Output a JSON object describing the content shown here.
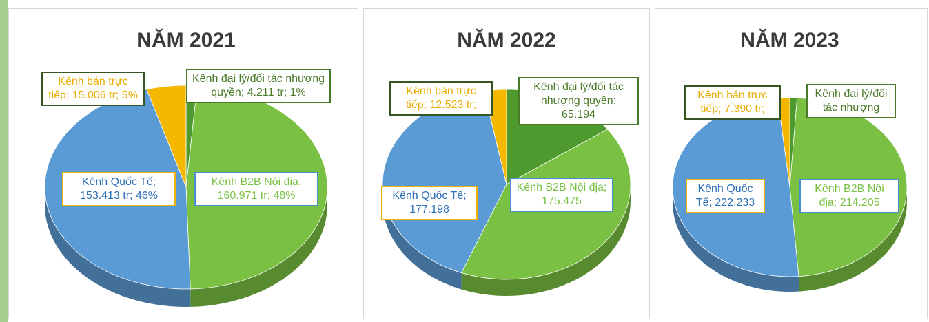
{
  "chart_data": [
    {
      "type": "pie",
      "title": "NĂM 2021",
      "values": [
        4211,
        160971,
        153413,
        15006
      ],
      "value_labels": [
        "Kênh đại lý/đối tác nhượng quyền; 4.211 tr; 1%",
        "Kênh B2B Nội địa; 160.971 tr; 48%",
        "Kênh Quốc Tế; 153.413 tr; 46%",
        "Kênh bán trực tiếp; 15.006 tr; 5%"
      ],
      "colors": [
        "#4e9a2e",
        "#7ac143",
        "#5b9bd5",
        "#f5b800"
      ]
    },
    {
      "type": "pie",
      "title": "NĂM 2022",
      "values": [
        65194,
        175475,
        177198,
        12523
      ],
      "value_labels": [
        "Kênh đại lý/đối tác nhượng quyền; 65.194",
        "Kênh B2B Nội địa; 175.475",
        "Kênh Quốc Tế; 177.198",
        "Kênh bán trực tiếp; 12.523 tr;"
      ],
      "colors": [
        "#4e9a2e",
        "#7ac143",
        "#5b9bd5",
        "#f5b800"
      ]
    },
    {
      "type": "pie",
      "title": "NĂM 2023",
      "values": [
        4500,
        214205,
        222233,
        7390
      ],
      "value_labels": [
        "Kênh đại lý/đối tác nhượng",
        "Kênh B2B Nội địa; 214.205",
        "Kênh Quốc Tế; 222.233",
        "Kênh bán trực tiếp; 7.390 tr;"
      ],
      "colors": [
        "#4e9a2e",
        "#7ac143",
        "#5b9bd5",
        "#f5b800"
      ]
    }
  ]
}
